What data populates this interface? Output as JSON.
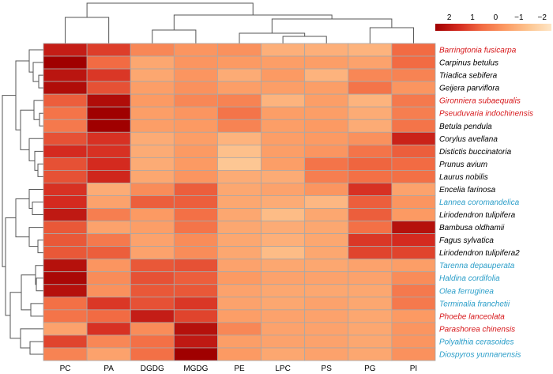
{
  "chart_data": {
    "type": "heatmap",
    "title": "",
    "columns": [
      "PC",
      "PA",
      "DGDG",
      "MGDG",
      "PE",
      "LPC",
      "PS",
      "PG",
      "PI"
    ],
    "rows": [
      {
        "name": "Barringtonia fusicarpa",
        "group": "red"
      },
      {
        "name": "Carpinus betulus",
        "group": "black"
      },
      {
        "name": "Triadica sebifera",
        "group": "black"
      },
      {
        "name": "Geijera parviflora",
        "group": "black"
      },
      {
        "name": "Gironniera subaequalis",
        "group": "red"
      },
      {
        "name": "Pseuduvaria indochinensis",
        "group": "red"
      },
      {
        "name": "Betula pendula",
        "group": "black"
      },
      {
        "name": "Corylus avellana",
        "group": "black"
      },
      {
        "name": "Distictis buccinatoria",
        "group": "black"
      },
      {
        "name": "Prunus avium",
        "group": "black"
      },
      {
        "name": "Laurus nobilis",
        "group": "black"
      },
      {
        "name": "Encelia farinosa",
        "group": "black"
      },
      {
        "name": "Lannea coromandelica",
        "group": "blue"
      },
      {
        "name": "Liriodendron tulipifera",
        "group": "black"
      },
      {
        "name": "Bambusa oldhamii",
        "group": "black"
      },
      {
        "name": "Fagus sylvatica",
        "group": "black"
      },
      {
        "name": "Liriodendron tulipifera2",
        "group": "black"
      },
      {
        "name": "Tarenna depauperata",
        "group": "blue"
      },
      {
        "name": "Haldina cordifolia",
        "group": "blue"
      },
      {
        "name": "Olea ferruginea",
        "group": "blue"
      },
      {
        "name": "Terminalia franchetii",
        "group": "blue"
      },
      {
        "name": "Phoebe lanceolata",
        "group": "red"
      },
      {
        "name": "Parashorea chinensis",
        "group": "red"
      },
      {
        "name": "Polyalthia cerasoides",
        "group": "blue"
      },
      {
        "name": "Diospyros yunnanensis",
        "group": "blue"
      }
    ],
    "values": [
      [
        1.9,
        1.3,
        0.0,
        -0.3,
        -0.2,
        -0.9,
        -0.9,
        -1.0,
        0.6
      ],
      [
        2.6,
        0.6,
        -0.7,
        -0.3,
        -0.4,
        -0.5,
        -0.5,
        -0.6,
        0.6
      ],
      [
        2.1,
        1.4,
        -0.7,
        -0.3,
        -0.8,
        -0.4,
        -1.0,
        0.0,
        0.1
      ],
      [
        2.3,
        1.0,
        -0.5,
        -0.2,
        -0.5,
        -0.5,
        -0.5,
        0.4,
        -0.3
      ],
      [
        0.8,
        2.3,
        -0.4,
        0.0,
        0.1,
        -1.0,
        -0.5,
        -1.0,
        0.3
      ],
      [
        0.4,
        2.6,
        -0.5,
        -0.3,
        0.4,
        -0.5,
        -0.5,
        -0.8,
        0.2
      ],
      [
        0.3,
        2.6,
        -0.5,
        -0.4,
        0.1,
        -0.5,
        -0.4,
        -0.8,
        0.4
      ],
      [
        1.0,
        1.5,
        -0.8,
        -0.5,
        -1.0,
        -0.5,
        -0.4,
        -0.2,
        1.8
      ],
      [
        1.6,
        1.5,
        -0.8,
        -0.4,
        -1.3,
        -0.5,
        -0.3,
        0.4,
        0.8
      ],
      [
        1.0,
        1.6,
        -0.8,
        -0.4,
        -1.5,
        -0.5,
        0.4,
        0.7,
        0.6
      ],
      [
        1.0,
        1.7,
        -0.7,
        -0.3,
        -0.8,
        -0.8,
        0.2,
        0.5,
        0.5
      ],
      [
        1.5,
        -0.8,
        -0.1,
        0.8,
        -0.7,
        -0.6,
        -0.3,
        1.5,
        -0.6
      ],
      [
        1.6,
        -0.6,
        0.8,
        0.8,
        -0.7,
        -0.8,
        -1.1,
        0.8,
        -0.3
      ],
      [
        2.0,
        0.2,
        -0.4,
        0.5,
        -0.7,
        -1.2,
        -0.7,
        0.8,
        -0.4
      ],
      [
        0.9,
        -0.6,
        -0.5,
        0.4,
        -0.7,
        -0.8,
        -0.7,
        0.5,
        2.2
      ],
      [
        0.9,
        0.3,
        -0.6,
        -0.1,
        -0.7,
        -0.9,
        -0.7,
        1.4,
        1.6
      ],
      [
        0.9,
        0.8,
        -0.6,
        -0.1,
        -0.7,
        -1.2,
        -0.7,
        1.2,
        1.2
      ],
      [
        2.2,
        -0.3,
        0.9,
        1.0,
        -0.6,
        -0.7,
        -0.7,
        -0.6,
        -0.5
      ],
      [
        2.4,
        -0.1,
        1.0,
        0.8,
        -0.4,
        -0.6,
        -0.6,
        -0.6,
        -0.1
      ],
      [
        2.2,
        -0.2,
        0.9,
        0.9,
        -0.6,
        -0.7,
        -0.7,
        -0.7,
        0.3
      ],
      [
        0.5,
        1.4,
        1.0,
        1.4,
        -0.6,
        -0.7,
        -0.6,
        -0.7,
        0.3
      ],
      [
        0.4,
        0.6,
        1.9,
        1.2,
        -0.5,
        -0.6,
        -0.6,
        -0.7,
        -0.4
      ],
      [
        -0.6,
        1.5,
        -0.1,
        2.2,
        0.0,
        -0.6,
        -0.6,
        -0.7,
        -0.3
      ],
      [
        1.2,
        0.0,
        0.5,
        2.0,
        -0.5,
        -0.6,
        -0.6,
        -0.7,
        -0.3
      ],
      [
        0.1,
        -0.6,
        0.5,
        2.7,
        -0.4,
        -0.7,
        -0.6,
        -0.7,
        -0.2
      ]
    ],
    "row_label_colors": {
      "red": "#d7191c",
      "black": "#000000",
      "blue": "#2b9ec9"
    },
    "legend": {
      "ticks": [
        "2",
        "1",
        "0",
        "−1",
        "−2"
      ],
      "tick_values": [
        2,
        1,
        0,
        -1,
        -2
      ],
      "range": [
        2.6,
        -2.4
      ],
      "placement": "top-right",
      "colors": [
        "#a00000",
        "#d42a1f",
        "#f26b43",
        "#fc9a63",
        "#fdc48f",
        "#fee6c6"
      ]
    },
    "column_dendrogram": true,
    "row_dendrogram": true,
    "grid": true
  }
}
